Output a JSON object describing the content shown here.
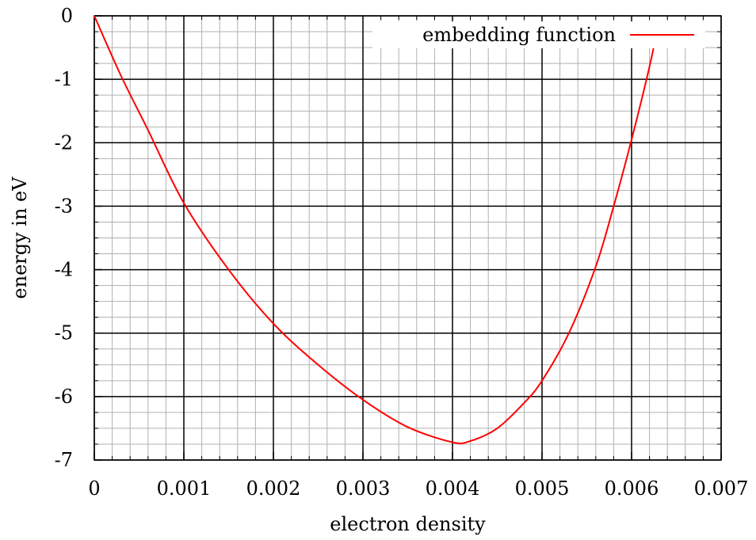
{
  "chart_data": {
    "type": "line",
    "title": "",
    "xlabel": "electron density",
    "ylabel": "energy in eV",
    "xlim": [
      0,
      0.007
    ],
    "ylim": [
      -7,
      0
    ],
    "x_ticks": [
      "0",
      "0.001",
      "0.002",
      "0.003",
      "0.004",
      "0.005",
      "0.006",
      "0.007"
    ],
    "y_ticks": [
      "0",
      "-1",
      "-2",
      "-3",
      "-4",
      "-5",
      "-6",
      "-7"
    ],
    "grid": true,
    "legend_position": "top-right",
    "series": [
      {
        "name": "embedding function",
        "color": "#ff0000",
        "x": [
          0,
          0.0003,
          0.0006,
          0.001,
          0.0015,
          0.002,
          0.0025,
          0.003,
          0.0035,
          0.004,
          0.0042,
          0.0045,
          0.0048,
          0.005,
          0.0053,
          0.0056,
          0.0058,
          0.006,
          0.0062,
          0.0063
        ],
        "y": [
          0,
          -0.95,
          -1.8,
          -2.95,
          -4.0,
          -4.85,
          -5.5,
          -6.05,
          -6.48,
          -6.72,
          -6.7,
          -6.5,
          -6.1,
          -5.75,
          -5.0,
          -3.95,
          -3.0,
          -1.95,
          -0.8,
          -0.12
        ]
      }
    ]
  }
}
